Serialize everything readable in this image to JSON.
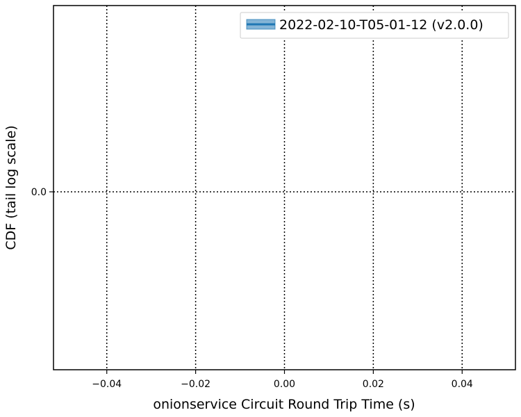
{
  "chart_data": {
    "type": "line",
    "xlabel": "onionservice Circuit Round Trip Time (s)",
    "ylabel": "CDF (tail log scale)",
    "xlim": [
      -0.052,
      0.052
    ],
    "xticks": [
      -0.04,
      -0.02,
      0.0,
      0.02,
      0.04
    ],
    "xtick_labels": [
      "−0.04",
      "−0.02",
      "0.00",
      "0.02",
      "0.04"
    ],
    "yticks": [
      0.0
    ],
    "ytick_labels": [
      "0.0"
    ],
    "grid": true,
    "grid_style": "dotted",
    "legend_position": "top-right",
    "series": [
      {
        "name": "2022-02-10-T05-01-12 (v2.0.0)",
        "x": [],
        "y": [],
        "color": "#1f77b4"
      }
    ]
  }
}
